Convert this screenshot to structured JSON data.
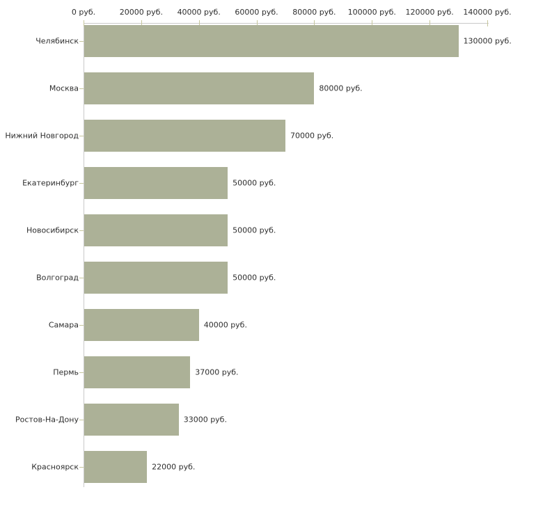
{
  "chart_data": {
    "type": "bar",
    "orientation": "horizontal",
    "title": "",
    "xlabel": "",
    "ylabel": "",
    "xlim": [
      0,
      140000
    ],
    "grid": false,
    "legend": false,
    "axis_position": "top",
    "categories": [
      "Челябинск",
      "Москва",
      "Нижний Новгород",
      "Екатеринбург",
      "Новосибирск",
      "Волгоград",
      "Самара",
      "Пермь",
      "Ростов-На-Дону",
      "Красноярск"
    ],
    "values": [
      130000,
      80000,
      70000,
      50000,
      50000,
      50000,
      40000,
      37000,
      33000,
      22000
    ],
    "value_labels": [
      "130000 руб.",
      "80000 руб.",
      "70000 руб.",
      "50000 руб.",
      "50000 руб.",
      "50000 руб.",
      "40000 руб.",
      "37000 руб.",
      "33000 руб.",
      "22000 руб."
    ],
    "x_axis": {
      "ticks": [
        0,
        20000,
        40000,
        60000,
        80000,
        100000,
        120000,
        140000
      ],
      "tick_labels": [
        "0 руб.",
        "20000 руб.",
        "40000 руб.",
        "60000 руб.",
        "80000 руб.",
        "100000 руб.",
        "120000 руб.",
        "140000 руб."
      ]
    },
    "colors": {
      "bar": "#acb197",
      "axis_line": "#c9c9c9",
      "tick_mark": "#c6c69c",
      "text": "#2e2e2e",
      "background": "#ffffff"
    }
  }
}
